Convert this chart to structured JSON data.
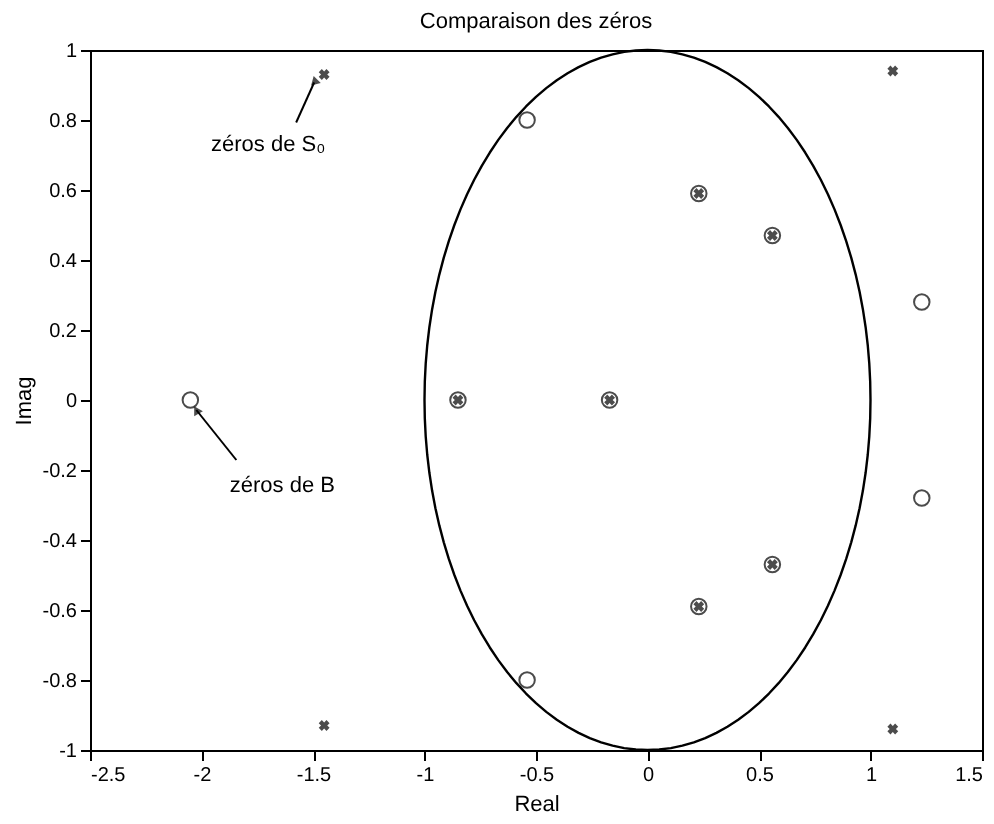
{
  "chart_data": {
    "type": "scatter",
    "title": "Comparaison des zéros",
    "xlabel": "Real",
    "ylabel": "Imag",
    "xlim": [
      -2.5,
      1.5
    ],
    "xticks": [
      -2.5,
      -2,
      -1.5,
      -1,
      -0.5,
      0,
      0.5,
      1,
      1.5
    ],
    "ylim": [
      -1,
      1
    ],
    "yticks": [
      -1,
      -0.8,
      -0.6,
      -0.4,
      -0.2,
      0,
      0.2,
      0.4,
      0.6,
      0.8,
      1
    ],
    "grid": false,
    "series": [
      {
        "marker": "circle",
        "color": "#000000",
        "x": [
          -2.05,
          -0.54,
          -0.54,
          -0.85,
          -0.17,
          0.23,
          0.23,
          0.56,
          0.56,
          1.23,
          1.23
        ],
        "values": [
          0,
          0.8,
          -0.8,
          0,
          0,
          0.59,
          -0.59,
          0.47,
          -0.47,
          0.28,
          -0.28
        ]
      },
      {
        "marker": "cross",
        "color": "#000000",
        "x": [
          -1.45,
          1.1,
          -1.45,
          1.1,
          -0.85,
          -0.17,
          0.23,
          0.23,
          0.56,
          0.56
        ],
        "values": [
          0.93,
          0.94,
          -0.93,
          -0.94,
          0,
          0,
          0.59,
          -0.59,
          0.47,
          -0.47
        ]
      }
    ],
    "annotations": [
      {
        "text": "zéros de S₀",
        "x": -1.45,
        "y": 0.93
      },
      {
        "text": "zéros de B",
        "x": -2.05,
        "y": 0
      }
    ]
  }
}
